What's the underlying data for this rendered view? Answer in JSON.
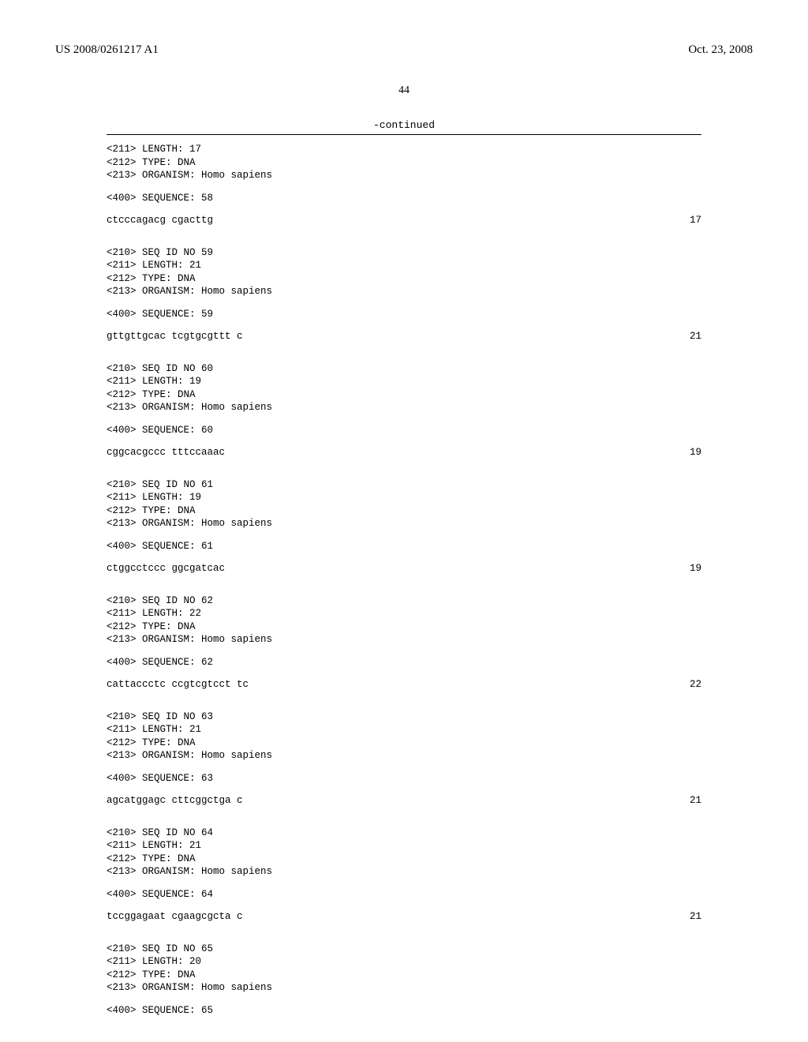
{
  "header": {
    "left": "US 2008/0261217 A1",
    "right": "Oct. 23, 2008"
  },
  "page_number": "44",
  "continued_label": "-continued",
  "entries": [
    {
      "meta_lines": [
        "<211> LENGTH: 17",
        "<212> TYPE: DNA",
        "<213> ORGANISM: Homo sapiens"
      ],
      "seq_label": "<400> SEQUENCE: 58",
      "sequence": "ctcccagacg cgacttg",
      "length": "17"
    },
    {
      "meta_lines": [
        "<210> SEQ ID NO 59",
        "<211> LENGTH: 21",
        "<212> TYPE: DNA",
        "<213> ORGANISM: Homo sapiens"
      ],
      "seq_label": "<400> SEQUENCE: 59",
      "sequence": "gttgttgcac tcgtgcgttt c",
      "length": "21"
    },
    {
      "meta_lines": [
        "<210> SEQ ID NO 60",
        "<211> LENGTH: 19",
        "<212> TYPE: DNA",
        "<213> ORGANISM: Homo sapiens"
      ],
      "seq_label": "<400> SEQUENCE: 60",
      "sequence": "cggcacgccc tttccaaac",
      "length": "19"
    },
    {
      "meta_lines": [
        "<210> SEQ ID NO 61",
        "<211> LENGTH: 19",
        "<212> TYPE: DNA",
        "<213> ORGANISM: Homo sapiens"
      ],
      "seq_label": "<400> SEQUENCE: 61",
      "sequence": "ctggcctccc ggcgatcac",
      "length": "19"
    },
    {
      "meta_lines": [
        "<210> SEQ ID NO 62",
        "<211> LENGTH: 22",
        "<212> TYPE: DNA",
        "<213> ORGANISM: Homo sapiens"
      ],
      "seq_label": "<400> SEQUENCE: 62",
      "sequence": "cattaccctc ccgtcgtcct tc",
      "length": "22"
    },
    {
      "meta_lines": [
        "<210> SEQ ID NO 63",
        "<211> LENGTH: 21",
        "<212> TYPE: DNA",
        "<213> ORGANISM: Homo sapiens"
      ],
      "seq_label": "<400> SEQUENCE: 63",
      "sequence": "agcatggagc cttcggctga c",
      "length": "21"
    },
    {
      "meta_lines": [
        "<210> SEQ ID NO 64",
        "<211> LENGTH: 21",
        "<212> TYPE: DNA",
        "<213> ORGANISM: Homo sapiens"
      ],
      "seq_label": "<400> SEQUENCE: 64",
      "sequence": "tccggagaat cgaagcgcta c",
      "length": "21"
    },
    {
      "meta_lines": [
        "<210> SEQ ID NO 65",
        "<211> LENGTH: 20",
        "<212> TYPE: DNA",
        "<213> ORGANISM: Homo sapiens"
      ],
      "seq_label": "<400> SEQUENCE: 65",
      "sequence": "",
      "length": ""
    }
  ]
}
